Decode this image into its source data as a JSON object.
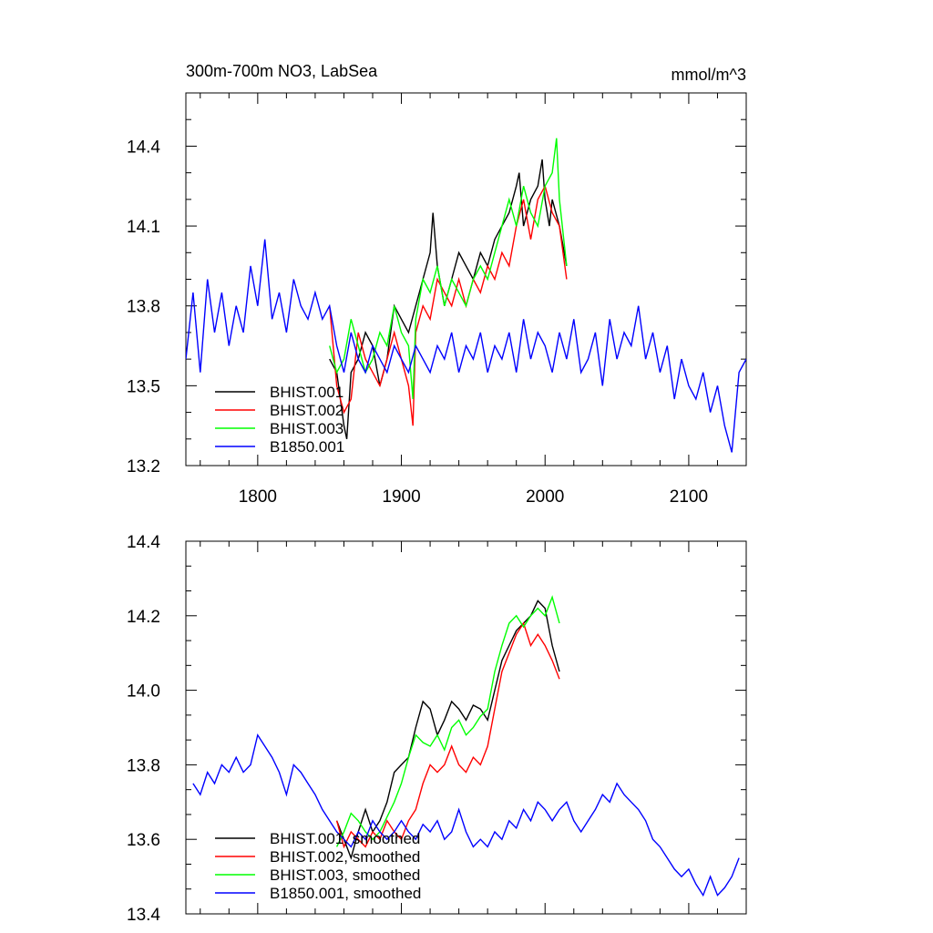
{
  "chart_data": [
    {
      "type": "line",
      "title": "300m-700m NO3, LabSea",
      "units": "mmol/m^3",
      "xlim": [
        1750,
        2140
      ],
      "ylim": [
        13.2,
        14.6
      ],
      "xticks": [
        "1800",
        "1900",
        "2000",
        "2100"
      ],
      "yticks": [
        "13.2",
        "13.5",
        "13.8",
        "14.1",
        "14.4"
      ],
      "legend_position": "bottom-left",
      "series": [
        {
          "name": "BHIST.001",
          "color": "#000000",
          "x": [
            1850,
            1855,
            1860,
            1862,
            1865,
            1870,
            1875,
            1880,
            1885,
            1890,
            1895,
            1900,
            1905,
            1910,
            1915,
            1920,
            1922,
            1925,
            1930,
            1935,
            1940,
            1945,
            1950,
            1955,
            1960,
            1965,
            1970,
            1975,
            1980,
            1982,
            1985,
            1990,
            1995,
            1998,
            2000,
            2003,
            2005,
            2010,
            2015
          ],
          "y": [
            13.6,
            13.55,
            13.35,
            13.3,
            13.55,
            13.6,
            13.7,
            13.65,
            13.5,
            13.6,
            13.8,
            13.75,
            13.7,
            13.8,
            13.9,
            14.0,
            14.15,
            13.95,
            13.8,
            13.9,
            14.0,
            13.95,
            13.9,
            14.0,
            13.95,
            14.05,
            14.1,
            14.15,
            14.25,
            14.3,
            14.1,
            14.2,
            14.25,
            14.35,
            14.2,
            14.1,
            14.2,
            14.1,
            13.95
          ]
        },
        {
          "name": "BHIST.002",
          "color": "#ff0000",
          "x": [
            1850,
            1855,
            1860,
            1865,
            1870,
            1875,
            1880,
            1885,
            1890,
            1895,
            1900,
            1905,
            1908,
            1910,
            1915,
            1920,
            1925,
            1930,
            1935,
            1940,
            1945,
            1950,
            1955,
            1960,
            1965,
            1970,
            1975,
            1980,
            1985,
            1990,
            1995,
            2000,
            2005,
            2010,
            2015
          ],
          "y": [
            13.8,
            13.5,
            13.4,
            13.45,
            13.7,
            13.6,
            13.55,
            13.5,
            13.6,
            13.7,
            13.6,
            13.5,
            13.35,
            13.7,
            13.8,
            13.75,
            13.9,
            13.85,
            13.8,
            13.9,
            13.8,
            13.9,
            13.85,
            13.95,
            13.9,
            14.0,
            13.95,
            14.1,
            14.2,
            14.05,
            14.2,
            14.25,
            14.15,
            14.1,
            13.9
          ]
        },
        {
          "name": "BHIST.003",
          "color": "#00ff00",
          "x": [
            1850,
            1855,
            1860,
            1865,
            1870,
            1875,
            1880,
            1885,
            1890,
            1895,
            1900,
            1905,
            1908,
            1910,
            1915,
            1920,
            1925,
            1930,
            1935,
            1940,
            1945,
            1950,
            1955,
            1960,
            1965,
            1970,
            1975,
            1980,
            1985,
            1990,
            1995,
            2000,
            2005,
            2008,
            2010,
            2015
          ],
          "y": [
            13.65,
            13.55,
            13.6,
            13.75,
            13.65,
            13.55,
            13.6,
            13.7,
            13.65,
            13.8,
            13.7,
            13.65,
            13.45,
            13.75,
            13.9,
            13.85,
            13.95,
            13.8,
            13.9,
            13.85,
            13.8,
            13.9,
            13.95,
            13.9,
            14.0,
            14.1,
            14.2,
            14.1,
            14.25,
            14.15,
            14.1,
            14.25,
            14.3,
            14.43,
            14.2,
            13.95
          ]
        },
        {
          "name": "B1850.001",
          "color": "#0000ff",
          "x": [
            1750,
            1755,
            1760,
            1765,
            1770,
            1775,
            1780,
            1785,
            1790,
            1795,
            1800,
            1805,
            1810,
            1815,
            1820,
            1825,
            1830,
            1835,
            1840,
            1845,
            1850,
            1855,
            1860,
            1865,
            1870,
            1875,
            1880,
            1885,
            1890,
            1895,
            1900,
            1905,
            1910,
            1915,
            1920,
            1925,
            1930,
            1935,
            1940,
            1945,
            1950,
            1955,
            1960,
            1965,
            1970,
            1975,
            1980,
            1985,
            1990,
            1995,
            2000,
            2005,
            2010,
            2015,
            2020,
            2025,
            2030,
            2035,
            2040,
            2045,
            2050,
            2055,
            2060,
            2065,
            2070,
            2075,
            2080,
            2085,
            2090,
            2095,
            2100,
            2105,
            2110,
            2115,
            2120,
            2125,
            2130,
            2135,
            2140
          ],
          "y": [
            13.6,
            13.85,
            13.55,
            13.9,
            13.7,
            13.85,
            13.65,
            13.8,
            13.7,
            13.95,
            13.8,
            14.05,
            13.75,
            13.85,
            13.7,
            13.9,
            13.8,
            13.75,
            13.85,
            13.75,
            13.8,
            13.65,
            13.55,
            13.7,
            13.6,
            13.55,
            13.65,
            13.6,
            13.55,
            13.65,
            13.6,
            13.55,
            13.65,
            13.6,
            13.55,
            13.65,
            13.6,
            13.7,
            13.55,
            13.65,
            13.6,
            13.7,
            13.55,
            13.65,
            13.6,
            13.7,
            13.55,
            13.75,
            13.6,
            13.7,
            13.65,
            13.55,
            13.7,
            13.6,
            13.75,
            13.55,
            13.6,
            13.7,
            13.5,
            13.75,
            13.6,
            13.7,
            13.65,
            13.8,
            13.6,
            13.7,
            13.55,
            13.65,
            13.45,
            13.6,
            13.5,
            13.45,
            13.55,
            13.4,
            13.5,
            13.35,
            13.25,
            13.55,
            13.6
          ]
        }
      ]
    },
    {
      "type": "line",
      "xlim": [
        1750,
        2140
      ],
      "ylim": [
        13.4,
        14.4
      ],
      "xticks": [],
      "yticks": [
        "13.4",
        "13.6",
        "13.8",
        "14.0",
        "14.2",
        "14.4"
      ],
      "legend_position": "bottom-left",
      "series": [
        {
          "name": "BHIST.001, smoothed",
          "color": "#000000",
          "x": [
            1855,
            1860,
            1865,
            1870,
            1875,
            1880,
            1885,
            1890,
            1895,
            1900,
            1905,
            1910,
            1915,
            1920,
            1925,
            1930,
            1935,
            1940,
            1945,
            1950,
            1955,
            1960,
            1965,
            1970,
            1975,
            1980,
            1985,
            1990,
            1995,
            2000,
            2005,
            2010
          ],
          "y": [
            13.65,
            13.6,
            13.55,
            13.62,
            13.68,
            13.62,
            13.65,
            13.7,
            13.78,
            13.8,
            13.82,
            13.9,
            13.97,
            13.95,
            13.88,
            13.92,
            13.97,
            13.95,
            13.92,
            13.96,
            13.95,
            13.92,
            14.0,
            14.08,
            14.12,
            14.16,
            14.18,
            14.2,
            14.24,
            14.22,
            14.12,
            14.05
          ]
        },
        {
          "name": "BHIST.002, smoothed",
          "color": "#ff0000",
          "x": [
            1855,
            1860,
            1865,
            1870,
            1875,
            1880,
            1885,
            1890,
            1895,
            1900,
            1905,
            1910,
            1915,
            1920,
            1925,
            1930,
            1935,
            1940,
            1945,
            1950,
            1955,
            1960,
            1965,
            1970,
            1975,
            1980,
            1985,
            1990,
            1995,
            2000,
            2005,
            2010
          ],
          "y": [
            13.65,
            13.58,
            13.62,
            13.6,
            13.58,
            13.62,
            13.6,
            13.65,
            13.62,
            13.6,
            13.65,
            13.68,
            13.75,
            13.8,
            13.78,
            13.8,
            13.85,
            13.8,
            13.78,
            13.82,
            13.8,
            13.85,
            13.95,
            14.05,
            14.1,
            14.15,
            14.18,
            14.12,
            14.15,
            14.12,
            14.08,
            14.03
          ]
        },
        {
          "name": "BHIST.003, smoothed",
          "color": "#00ff00",
          "x": [
            1855,
            1860,
            1865,
            1870,
            1875,
            1880,
            1885,
            1890,
            1895,
            1900,
            1905,
            1910,
            1915,
            1920,
            1925,
            1930,
            1935,
            1940,
            1945,
            1950,
            1955,
            1960,
            1965,
            1970,
            1975,
            1980,
            1985,
            1990,
            1995,
            2000,
            2005,
            2010
          ],
          "y": [
            13.58,
            13.62,
            13.67,
            13.65,
            13.62,
            13.6,
            13.62,
            13.66,
            13.7,
            13.75,
            13.82,
            13.88,
            13.86,
            13.85,
            13.88,
            13.84,
            13.9,
            13.92,
            13.88,
            13.9,
            13.93,
            13.95,
            14.05,
            14.12,
            14.18,
            14.2,
            14.17,
            14.2,
            14.22,
            14.2,
            14.25,
            14.18
          ]
        },
        {
          "name": "B1850.001, smoothed",
          "color": "#0000ff",
          "x": [
            1755,
            1760,
            1765,
            1770,
            1775,
            1780,
            1785,
            1790,
            1795,
            1800,
            1805,
            1810,
            1815,
            1820,
            1825,
            1830,
            1835,
            1840,
            1845,
            1850,
            1855,
            1860,
            1865,
            1870,
            1875,
            1880,
            1885,
            1890,
            1895,
            1900,
            1905,
            1910,
            1915,
            1920,
            1925,
            1930,
            1935,
            1940,
            1945,
            1950,
            1955,
            1960,
            1965,
            1970,
            1975,
            1980,
            1985,
            1990,
            1995,
            2000,
            2005,
            2010,
            2015,
            2020,
            2025,
            2030,
            2035,
            2040,
            2045,
            2050,
            2055,
            2060,
            2065,
            2070,
            2075,
            2080,
            2085,
            2090,
            2095,
            2100,
            2105,
            2110,
            2115,
            2120,
            2125,
            2130,
            2135
          ],
          "y": [
            13.75,
            13.72,
            13.78,
            13.75,
            13.8,
            13.78,
            13.82,
            13.78,
            13.8,
            13.88,
            13.85,
            13.82,
            13.78,
            13.72,
            13.8,
            13.78,
            13.75,
            13.72,
            13.68,
            13.65,
            13.62,
            13.6,
            13.58,
            13.62,
            13.6,
            13.65,
            13.62,
            13.6,
            13.62,
            13.65,
            13.62,
            13.6,
            13.64,
            13.62,
            13.65,
            13.6,
            13.62,
            13.68,
            13.62,
            13.58,
            13.6,
            13.58,
            13.62,
            13.6,
            13.65,
            13.63,
            13.68,
            13.65,
            13.7,
            13.68,
            13.65,
            13.68,
            13.7,
            13.65,
            13.62,
            13.65,
            13.68,
            13.72,
            13.7,
            13.75,
            13.72,
            13.7,
            13.68,
            13.65,
            13.6,
            13.58,
            13.55,
            13.52,
            13.5,
            13.52,
            13.48,
            13.45,
            13.5,
            13.45,
            13.47,
            13.5,
            13.55
          ]
        }
      ]
    }
  ]
}
